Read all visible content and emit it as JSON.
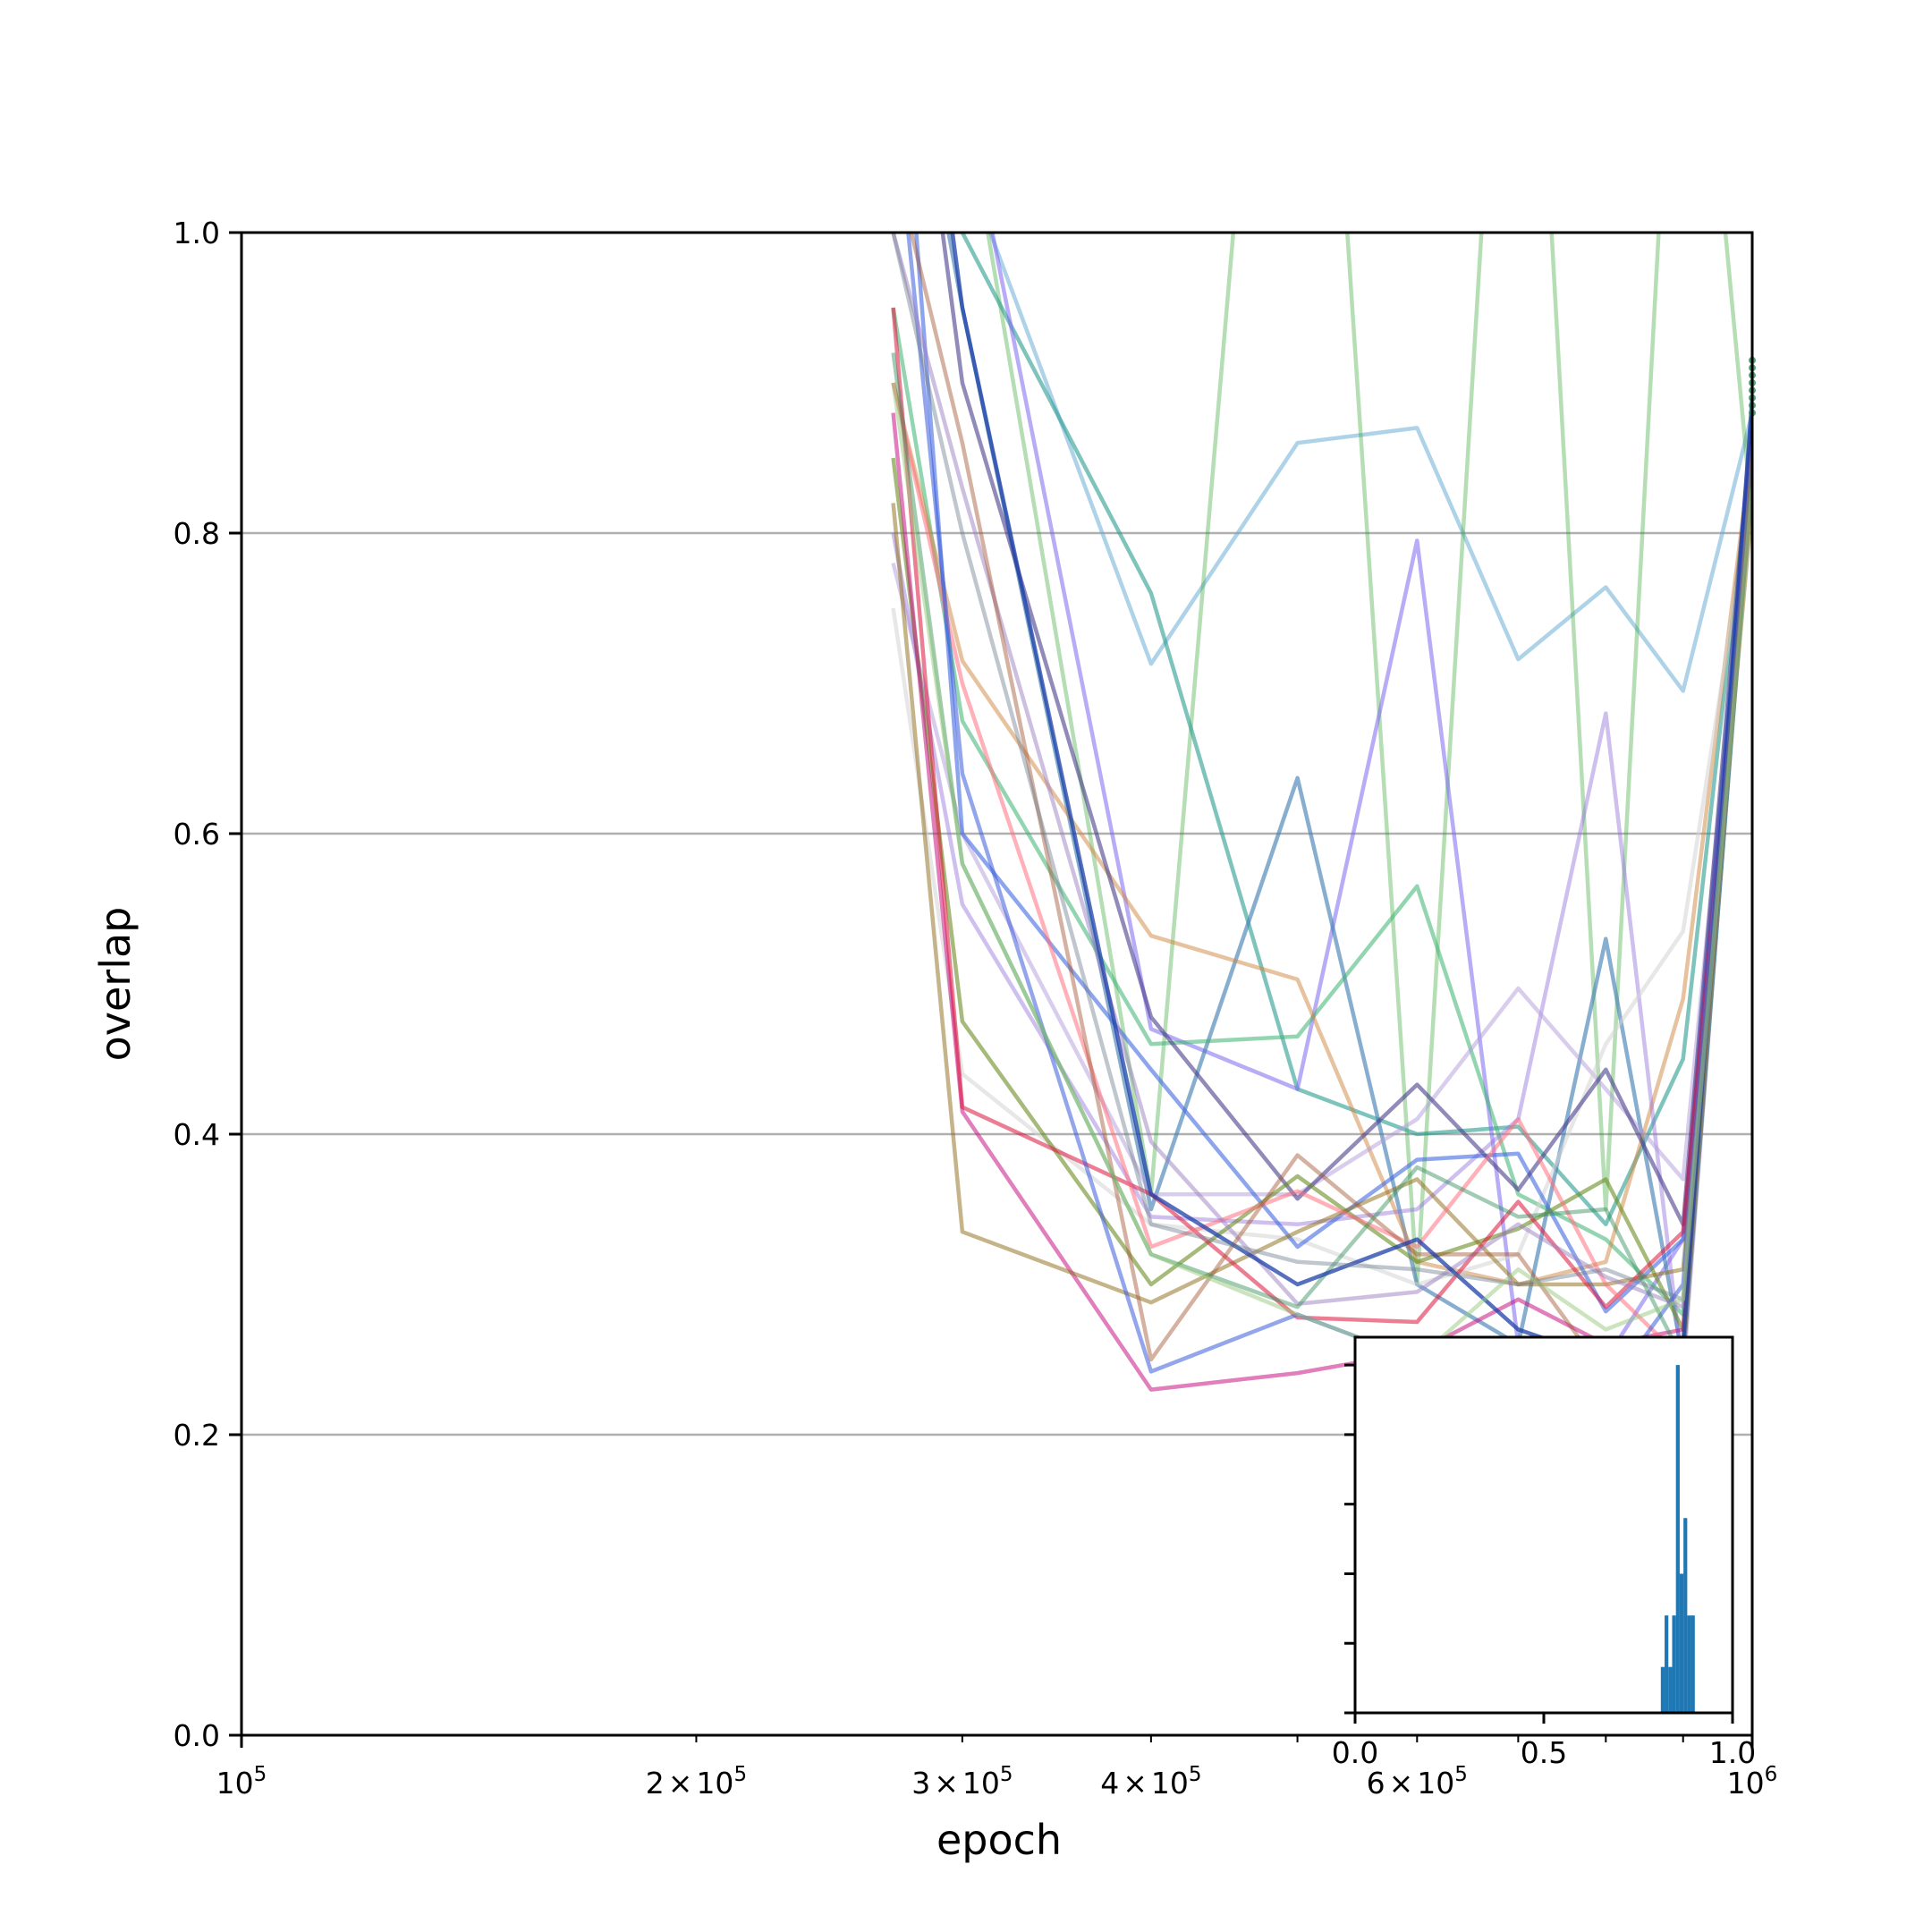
{
  "chart_data": [
    {
      "type": "line",
      "xlabel": "epoch",
      "ylabel": "overlap",
      "xscale": "log",
      "xlim": [
        100000,
        1000000
      ],
      "ylim": [
        0.0,
        1.0
      ],
      "grid": "y",
      "legend": "none",
      "x_ticks": [
        {
          "value": 100000,
          "base": "10",
          "exp": "5"
        },
        {
          "value": 200000,
          "mant": "2",
          "base": "10",
          "exp": "5"
        },
        {
          "value": 300000,
          "mant": "3",
          "base": "10",
          "exp": "5"
        },
        {
          "value": 400000,
          "mant": "4",
          "base": "10",
          "exp": "5"
        },
        {
          "value": 600000,
          "mant": "6",
          "base": "10",
          "exp": "5"
        },
        {
          "value": 1000000,
          "base": "10",
          "exp": "6"
        }
      ],
      "y_ticks": [
        "0.0",
        "0.2",
        "0.4",
        "0.6",
        "0.8",
        "1.0"
      ],
      "x": [
        270000,
        300000,
        400000,
        500000,
        600000,
        700000,
        800000,
        900000,
        1000000
      ],
      "series": [
        {
          "color": "#6baed6",
          "alpha": 0.55,
          "values": [
            1.3,
            1.05,
            0.713,
            0.86,
            0.87,
            0.716,
            0.764,
            0.695,
            0.88
          ]
        },
        {
          "color": "#2ca02c",
          "alpha": 0.35,
          "values": [
            1.2,
            1.1,
            0.36,
            1.5,
            0.3,
            1.4,
            0.35,
            1.3,
            0.81
          ]
        },
        {
          "color": "#2a9d8f",
          "alpha": 0.6,
          "values": [
            1.15,
            1.0,
            0.76,
            0.43,
            0.4,
            0.405,
            0.34,
            0.45,
            0.86
          ]
        },
        {
          "color": "#7b68ee",
          "alpha": 0.55,
          "values": [
            1.25,
            1.1,
            0.47,
            0.43,
            0.795,
            0.26,
            0.25,
            0.33,
            0.85
          ]
        },
        {
          "color": "#4682b4",
          "alpha": 0.65,
          "values": [
            1.2,
            0.95,
            0.35,
            0.637,
            0.3,
            0.26,
            0.53,
            0.25,
            0.84
          ]
        },
        {
          "color": "#3cb371",
          "alpha": 0.55,
          "values": [
            0.95,
            0.675,
            0.46,
            0.465,
            0.565,
            0.36,
            0.33,
            0.28,
            0.87
          ]
        },
        {
          "color": "#cd853f",
          "alpha": 0.5,
          "values": [
            0.9,
            0.715,
            0.532,
            0.503,
            0.315,
            0.3,
            0.315,
            0.49,
            0.86
          ]
        },
        {
          "color": "#9370db",
          "alpha": 0.45,
          "values": [
            0.8,
            0.553,
            0.345,
            0.34,
            0.35,
            0.41,
            0.68,
            0.24,
            0.85
          ]
        },
        {
          "color": "#b19cd9",
          "alpha": 0.5,
          "values": [
            0.78,
            0.6,
            0.36,
            0.36,
            0.41,
            0.497,
            0.43,
            0.37,
            0.84
          ]
        },
        {
          "color": "#d3d3d3",
          "alpha": 0.55,
          "values": [
            0.75,
            0.44,
            0.34,
            0.33,
            0.3,
            0.32,
            0.46,
            0.535,
            0.83
          ]
        },
        {
          "color": "#4169e1",
          "alpha": 0.6,
          "values": [
            1.2,
            0.6,
            0.443,
            0.325,
            0.383,
            0.387,
            0.282,
            0.33,
            0.87
          ]
        },
        {
          "color": "#483d8b",
          "alpha": 0.6,
          "values": [
            1.25,
            0.9,
            0.478,
            0.357,
            0.433,
            0.363,
            0.443,
            0.34,
            0.88
          ]
        },
        {
          "color": "#6b8e23",
          "alpha": 0.6,
          "values": [
            0.85,
            0.475,
            0.3,
            0.372,
            0.315,
            0.337,
            0.37,
            0.27,
            0.85
          ]
        },
        {
          "color": "#c71585",
          "alpha": 0.55,
          "values": [
            0.88,
            0.415,
            0.23,
            0.241,
            0.255,
            0.29,
            0.26,
            0.27,
            0.84
          ]
        },
        {
          "color": "#8b6914",
          "alpha": 0.5,
          "values": [
            0.82,
            0.335,
            0.288,
            0.335,
            0.37,
            0.3,
            0.3,
            0.31,
            0.82
          ]
        },
        {
          "color": "#dc143c",
          "alpha": 0.55,
          "values": [
            0.95,
            0.418,
            0.36,
            0.278,
            0.275,
            0.355,
            0.285,
            0.335,
            0.83
          ]
        },
        {
          "color": "#ff6f7d",
          "alpha": 0.55,
          "values": [
            0.9,
            0.7,
            0.325,
            0.362,
            0.325,
            0.41,
            0.3,
            0.25,
            0.86
          ]
        },
        {
          "color": "#3b5bdb",
          "alpha": 0.55,
          "values": [
            1.1,
            0.64,
            0.242,
            0.28,
            0.25,
            0.24,
            0.23,
            0.3,
            0.87
          ]
        },
        {
          "color": "#9b7fbf",
          "alpha": 0.5,
          "values": [
            1.0,
            0.83,
            0.395,
            0.287,
            0.295,
            0.34,
            0.305,
            0.285,
            0.84
          ]
        },
        {
          "color": "#a0522d",
          "alpha": 0.45,
          "values": [
            1.05,
            0.86,
            0.25,
            0.386,
            0.32,
            0.32,
            0.24,
            0.26,
            0.85
          ]
        },
        {
          "color": "#2e8b57",
          "alpha": 0.45,
          "values": [
            0.92,
            0.58,
            0.32,
            0.285,
            0.378,
            0.345,
            0.35,
            0.25,
            0.84
          ]
        },
        {
          "color": "#1e3faa",
          "alpha": 0.75,
          "values": [
            1.3,
            0.95,
            0.36,
            0.3,
            0.33,
            0.27,
            0.25,
            0.26,
            0.89
          ]
        },
        {
          "color": "#708090",
          "alpha": 0.45,
          "values": [
            1.0,
            0.8,
            0.34,
            0.315,
            0.31,
            0.3,
            0.31,
            0.29,
            0.85
          ]
        },
        {
          "color": "#98c97d",
          "alpha": 0.5,
          "values": [
            0.9,
            0.58,
            0.32,
            0.28,
            0.25,
            0.31,
            0.27,
            0.29,
            0.83
          ]
        }
      ],
      "end_markers": [
        0.88,
        0.885,
        0.89,
        0.895,
        0.9,
        0.905,
        0.91,
        0.915
      ],
      "end_marker_color": "#2e8b57"
    },
    {
      "type": "bar",
      "subtype": "histogram",
      "color": "#1f77b4",
      "xlim": [
        0.0,
        1.0
      ],
      "ylim": [
        0,
        0.27
      ],
      "x_ticks": [
        "0.0",
        "0.5",
        "1.0"
      ],
      "y_tick_values": [
        0.0,
        0.05,
        0.1,
        0.15,
        0.2,
        0.25
      ],
      "bin_width": 0.01,
      "bins": [
        {
          "x": 0.81,
          "h": 0.033
        },
        {
          "x": 0.82,
          "h": 0.07
        },
        {
          "x": 0.83,
          "h": 0.033
        },
        {
          "x": 0.84,
          "h": 0.07
        },
        {
          "x": 0.85,
          "h": 0.25
        },
        {
          "x": 0.86,
          "h": 0.1
        },
        {
          "x": 0.87,
          "h": 0.14
        },
        {
          "x": 0.88,
          "h": 0.07
        },
        {
          "x": 0.89,
          "h": 0.07
        }
      ]
    }
  ]
}
